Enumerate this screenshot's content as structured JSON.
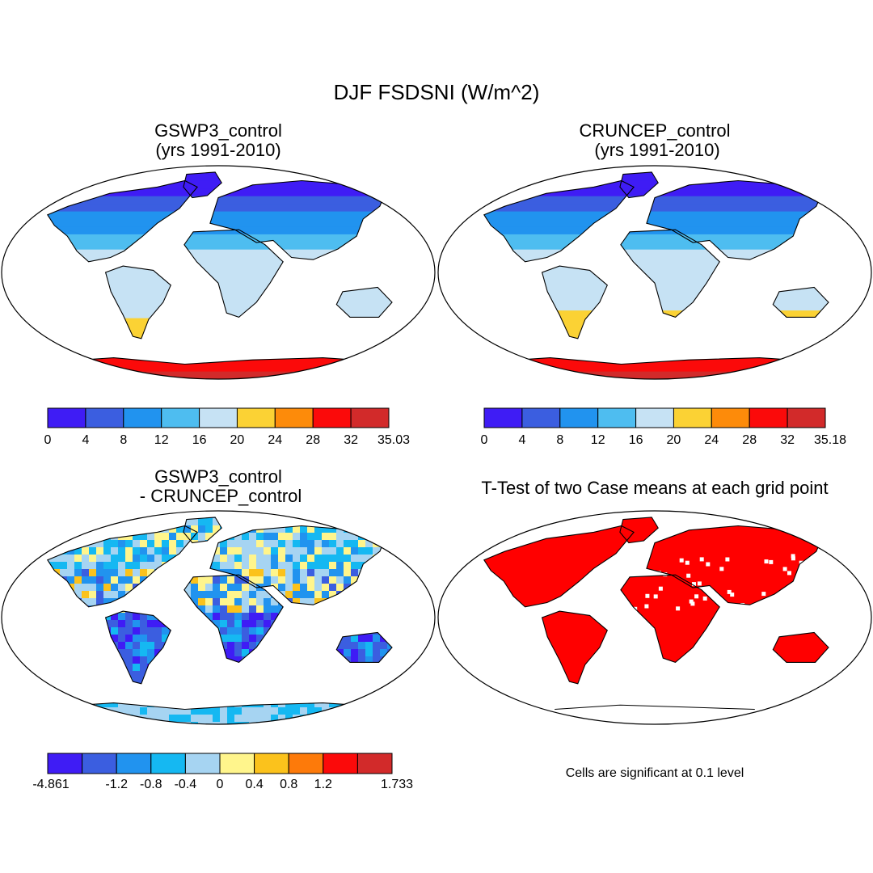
{
  "main_title": "DJF FSDSNI (W/m^2)",
  "panels": [
    {
      "title": "GSWP3_control\n(yrs 1991-2010)",
      "kind": "field",
      "scenario": "gswp"
    },
    {
      "title": "CRUNCEP_control\n (yrs 1991-2010)",
      "kind": "field",
      "scenario": "cruncep"
    },
    {
      "title": "GSWP3_control\n - CRUNCEP_control",
      "kind": "difference"
    },
    {
      "title": "T-Test of two Case means at each grid point",
      "kind": "ttest"
    }
  ],
  "colorbars": [
    {
      "name": "gswp3-colorbar",
      "colors": [
        "#3f1cf5",
        "#3b5ee0",
        "#2193ef",
        "#4ebdf0",
        "#c6e2f4",
        "#fbd234",
        "#fd8b0a",
        "#fb0a0a",
        "#d22a2a"
      ],
      "labels": [
        "0",
        "4",
        "8",
        "12",
        "16",
        "20",
        "24",
        "28",
        "32",
        "35.03"
      ]
    },
    {
      "name": "cruncep-colorbar",
      "colors": [
        "#3f1cf5",
        "#3b5ee0",
        "#2193ef",
        "#4ebdf0",
        "#c6e2f4",
        "#fbd234",
        "#fd8b0a",
        "#fb0a0a",
        "#d22a2a"
      ],
      "labels": [
        "0",
        "4",
        "8",
        "12",
        "16",
        "20",
        "24",
        "28",
        "32",
        "35.18"
      ]
    },
    {
      "name": "difference-colorbar",
      "colors": [
        "#3f1cf5",
        "#3b5ee0",
        "#2193ef",
        "#15b8f2",
        "#a6d4f2",
        "#fff58c",
        "#fbc21c",
        "#fd7a0a",
        "#fb0a0a",
        "#d22a2a"
      ],
      "labels": [
        "-4.861",
        "",
        "-1.2",
        "-0.8",
        "-0.4",
        "0",
        "0.4",
        "0.8",
        "1.2",
        "",
        "1.733"
      ]
    }
  ],
  "significance_note": "Cells are significant at 0.1 level",
  "significance_color": "#ff0000"
}
